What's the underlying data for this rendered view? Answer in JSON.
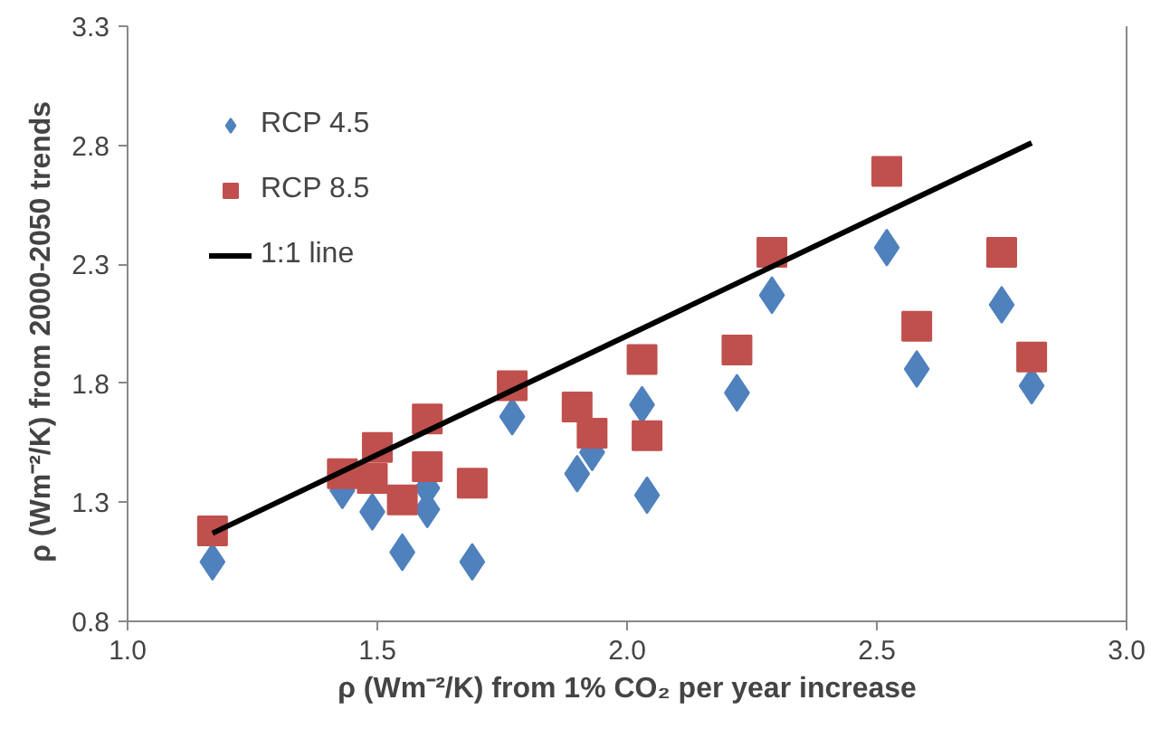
{
  "chart_data": {
    "type": "scatter",
    "xlabel": "ρ (Wm⁻²/K) from 1% CO₂ per year increase",
    "ylabel": "ρ (Wm⁻²/K)  from  2000-2050 trends",
    "xlim": [
      1.0,
      3.0
    ],
    "ylim": [
      0.8,
      3.3
    ],
    "xticks": [
      {
        "value": 1.0,
        "label": "1.0"
      },
      1.5,
      {
        "value": 2.0,
        "label": "2.0"
      },
      2.5,
      {
        "value": 3.0,
        "label": "3.0"
      }
    ],
    "yticks": [
      0.8,
      1.3,
      1.8,
      2.3,
      2.8,
      3.3
    ],
    "grid": false,
    "legend": "top left",
    "series": [
      {
        "name": "RCP 4.5",
        "color": "#4f81bd",
        "marker": "diamond",
        "x": [
          1.17,
          1.43,
          1.49,
          1.55,
          1.6,
          1.6,
          1.69,
          1.77,
          1.9,
          1.93,
          2.03,
          2.04,
          2.22,
          2.29,
          2.52,
          2.58,
          2.75,
          2.81
        ],
        "values": [
          1.05,
          1.35,
          1.26,
          1.09,
          1.27,
          1.36,
          1.05,
          1.66,
          1.42,
          1.51,
          1.71,
          1.33,
          1.76,
          2.17,
          2.37,
          1.86,
          2.13,
          1.79
        ]
      },
      {
        "name": "RCP 8.5",
        "color": "#c0504d",
        "marker": "square",
        "x": [
          1.17,
          1.43,
          1.49,
          1.5,
          1.55,
          1.6,
          1.6,
          1.69,
          1.77,
          1.9,
          1.93,
          2.03,
          2.04,
          2.22,
          2.29,
          2.52,
          2.58,
          2.75,
          2.81
        ],
        "values": [
          1.18,
          1.42,
          1.4,
          1.53,
          1.31,
          1.65,
          1.45,
          1.38,
          1.79,
          1.7,
          1.59,
          1.9,
          1.58,
          1.94,
          2.35,
          2.69,
          2.04,
          2.35,
          1.91
        ]
      },
      {
        "name": "1:1 line",
        "type": "line",
        "color": "#000000",
        "x": [
          1.17,
          2.81
        ],
        "values": [
          1.17,
          2.81
        ]
      }
    ]
  }
}
